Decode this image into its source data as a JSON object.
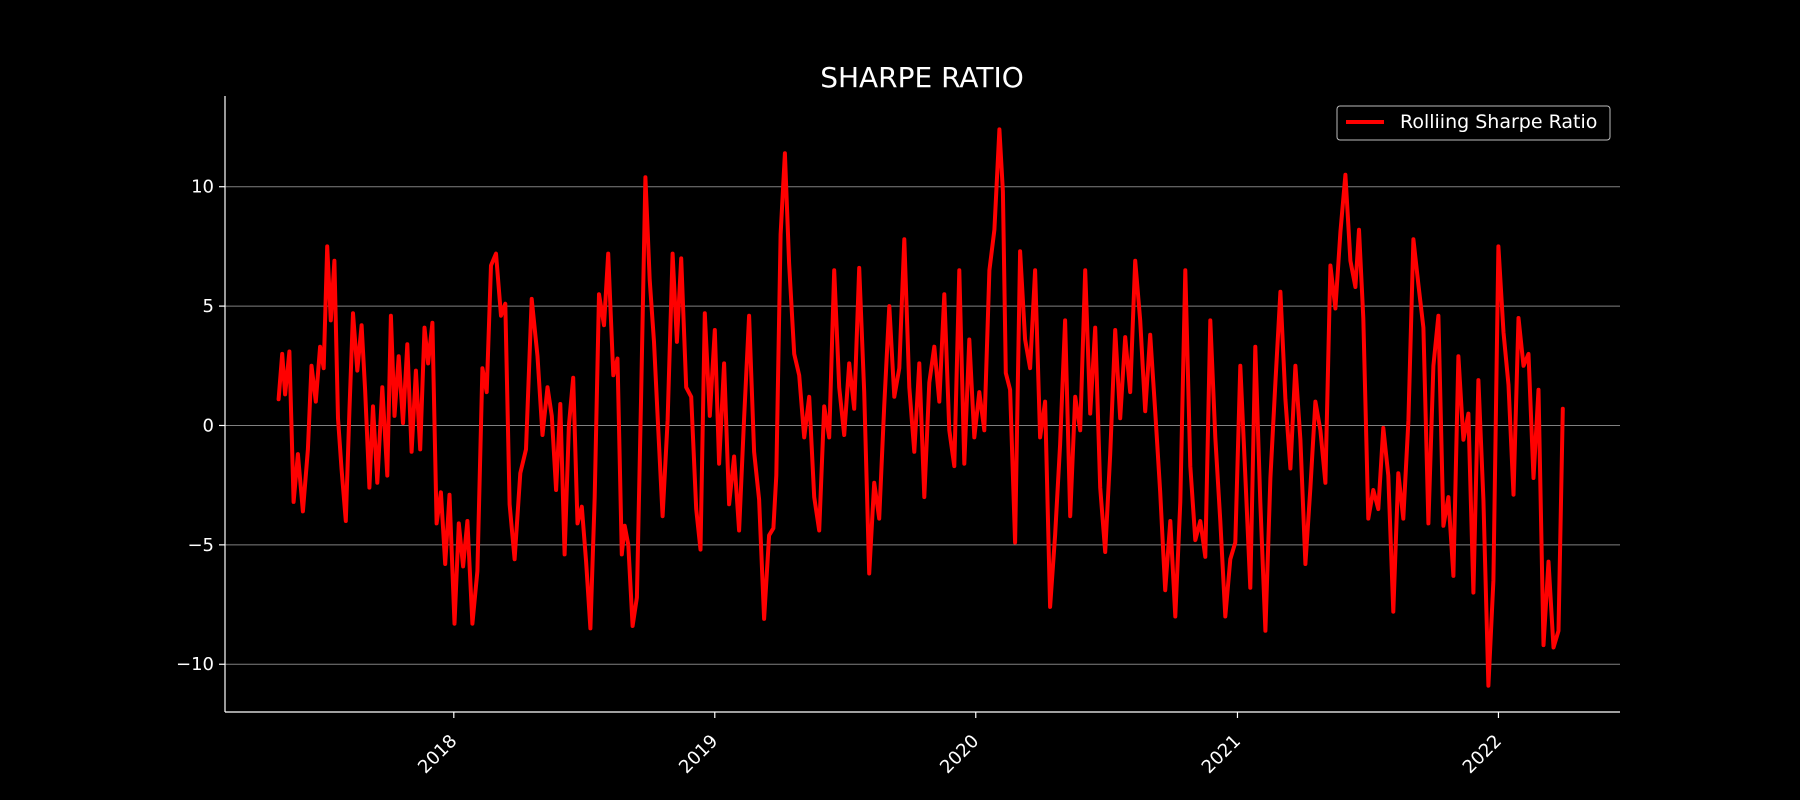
{
  "chart_data": {
    "type": "line",
    "title": "SHARPE RATIO",
    "xlabel": "",
    "ylabel": "",
    "x_axis_type": "date",
    "x_ticks": [
      "2018",
      "2019",
      "2020",
      "2021",
      "2022"
    ],
    "y_ticks": [
      -10,
      -5,
      0,
      5,
      10
    ],
    "xlim": [
      "2017-02-15",
      "2022-06-20"
    ],
    "ylim": [
      -12,
      13.8
    ],
    "grid": "horizontal",
    "legend_position": "top-right",
    "colors": {
      "background": "#000000",
      "series": "#ff0000",
      "grid": "#808080",
      "text": "#ffffff"
    },
    "series": [
      {
        "name": "Rolliing Sharpe Ratio",
        "x": [
          "2017-05-01",
          "2017-05-06",
          "2017-05-10",
          "2017-05-16",
          "2017-05-22",
          "2017-05-28",
          "2017-06-04",
          "2017-06-11",
          "2017-06-16",
          "2017-06-22",
          "2017-06-28",
          "2017-07-03",
          "2017-07-08",
          "2017-07-13",
          "2017-07-18",
          "2017-07-23",
          "2017-07-28",
          "2017-08-03",
          "2017-08-08",
          "2017-08-13",
          "2017-08-19",
          "2017-08-25",
          "2017-08-30",
          "2017-09-05",
          "2017-09-10",
          "2017-09-16",
          "2017-09-23",
          "2017-09-30",
          "2017-10-05",
          "2017-10-10",
          "2017-10-16",
          "2017-10-22",
          "2017-10-28",
          "2017-11-03",
          "2017-11-09",
          "2017-11-15",
          "2017-11-21",
          "2017-11-26",
          "2017-12-02",
          "2017-12-08",
          "2017-12-14",
          "2017-12-20",
          "2017-12-26",
          "2018-01-02",
          "2018-01-08",
          "2018-01-14",
          "2018-01-20",
          "2018-01-27",
          "2018-02-03",
          "2018-02-10",
          "2018-02-16",
          "2018-02-22",
          "2018-03-01",
          "2018-03-08",
          "2018-03-14",
          "2018-03-20",
          "2018-03-27",
          "2018-04-04",
          "2018-04-12",
          "2018-04-20",
          "2018-04-28",
          "2018-05-05",
          "2018-05-12",
          "2018-05-18",
          "2018-05-24",
          "2018-05-30",
          "2018-06-05",
          "2018-06-11",
          "2018-06-17",
          "2018-06-23",
          "2018-06-29",
          "2018-07-05",
          "2018-07-11",
          "2018-07-17",
          "2018-07-23",
          "2018-07-30",
          "2018-08-05",
          "2018-08-12",
          "2018-08-18",
          "2018-08-24",
          "2018-08-28",
          "2018-09-02",
          "2018-09-08",
          "2018-09-14",
          "2018-09-20",
          "2018-09-26",
          "2018-10-02",
          "2018-10-08",
          "2018-10-14",
          "2018-10-20",
          "2018-10-27",
          "2018-11-03",
          "2018-11-09",
          "2018-11-15",
          "2018-11-22",
          "2018-11-29",
          "2018-12-06",
          "2018-12-12",
          "2018-12-18",
          "2018-12-25",
          "2019-01-01",
          "2019-01-07",
          "2019-01-14",
          "2019-01-21",
          "2019-01-28",
          "2019-02-04",
          "2019-02-11",
          "2019-02-18",
          "2019-02-25",
          "2019-03-04",
          "2019-03-11",
          "2019-03-18",
          "2019-03-24",
          "2019-03-28",
          "2019-04-03",
          "2019-04-09",
          "2019-04-15",
          "2019-04-22",
          "2019-04-29",
          "2019-05-06",
          "2019-05-13",
          "2019-05-20",
          "2019-05-27",
          "2019-06-03",
          "2019-06-10",
          "2019-06-17",
          "2019-06-24",
          "2019-07-01",
          "2019-07-08",
          "2019-07-15",
          "2019-07-22",
          "2019-07-29",
          "2019-08-05",
          "2019-08-12",
          "2019-08-19",
          "2019-08-26",
          "2019-09-02",
          "2019-09-09",
          "2019-09-16",
          "2019-09-23",
          "2019-09-30",
          "2019-10-07",
          "2019-10-14",
          "2019-10-21",
          "2019-10-28",
          "2019-11-04",
          "2019-11-11",
          "2019-11-18",
          "2019-11-25",
          "2019-12-02",
          "2019-12-09",
          "2019-12-16",
          "2019-12-23",
          "2019-12-30",
          "2020-01-06",
          "2020-01-13",
          "2020-01-20",
          "2020-01-27",
          "2020-02-03",
          "2020-02-08",
          "2020-02-12",
          "2020-02-18",
          "2020-02-25",
          "2020-03-03",
          "2020-03-10",
          "2020-03-17",
          "2020-03-24",
          "2020-03-31",
          "2020-04-07",
          "2020-04-14",
          "2020-04-21",
          "2020-04-28",
          "2020-05-05",
          "2020-05-12",
          "2020-05-19",
          "2020-05-26",
          "2020-06-02",
          "2020-06-09",
          "2020-06-16",
          "2020-06-23",
          "2020-06-30",
          "2020-07-07",
          "2020-07-14",
          "2020-07-21",
          "2020-07-28",
          "2020-08-04",
          "2020-08-11",
          "2020-08-18",
          "2020-08-25",
          "2020-09-01",
          "2020-09-08",
          "2020-09-15",
          "2020-09-22",
          "2020-09-29",
          "2020-10-06",
          "2020-10-13",
          "2020-10-20",
          "2020-10-27",
          "2020-11-03",
          "2020-11-10",
          "2020-11-17",
          "2020-11-24",
          "2020-12-01",
          "2020-12-08",
          "2020-12-15",
          "2020-12-22",
          "2020-12-29",
          "2021-01-05",
          "2021-01-12",
          "2021-01-19",
          "2021-01-26",
          "2021-02-02",
          "2021-02-09",
          "2021-02-16",
          "2021-02-23",
          "2021-03-02",
          "2021-03-09",
          "2021-03-16",
          "2021-03-23",
          "2021-03-30",
          "2021-04-06",
          "2021-04-13",
          "2021-04-20",
          "2021-04-27",
          "2021-05-04",
          "2021-05-11",
          "2021-05-18",
          "2021-05-25",
          "2021-06-01",
          "2021-06-08",
          "2021-06-15",
          "2021-06-20",
          "2021-06-26",
          "2021-07-03",
          "2021-07-10",
          "2021-07-17",
          "2021-07-24",
          "2021-07-31",
          "2021-08-07",
          "2021-08-14",
          "2021-08-21",
          "2021-08-28",
          "2021-09-04",
          "2021-09-11",
          "2021-09-18",
          "2021-09-25",
          "2021-10-02",
          "2021-10-09",
          "2021-10-16",
          "2021-10-23",
          "2021-10-30",
          "2021-11-06",
          "2021-11-13",
          "2021-11-20",
          "2021-11-27",
          "2021-12-04",
          "2021-12-11",
          "2021-12-18",
          "2021-12-25",
          "2022-01-01",
          "2022-01-08",
          "2022-01-15",
          "2022-01-22",
          "2022-01-29",
          "2022-02-05",
          "2022-02-12",
          "2022-02-19",
          "2022-02-26",
          "2022-03-05",
          "2022-03-12",
          "2022-03-19",
          "2022-03-26",
          "2022-04-01"
        ],
        "y": [
          1.1,
          3.0,
          1.3,
          3.1,
          -3.2,
          -1.2,
          -3.6,
          -1.0,
          2.5,
          1.0,
          3.3,
          2.4,
          7.5,
          4.4,
          6.9,
          0.3,
          -1.8,
          -4.0,
          0.6,
          4.7,
          2.3,
          4.2,
          1.5,
          -2.6,
          0.8,
          -2.4,
          1.6,
          -2.1,
          4.6,
          0.4,
          2.9,
          0.1,
          3.4,
          -1.1,
          2.3,
          -1.0,
          4.1,
          2.6,
          4.3,
          -4.1,
          -2.8,
          -5.8,
          -2.9,
          -8.3,
          -4.1,
          -5.9,
          -4.0,
          -8.3,
          -6.1,
          2.4,
          1.4,
          6.7,
          7.2,
          4.6,
          5.1,
          -3.3,
          -5.6,
          -2.0,
          -1.0,
          5.3,
          2.9,
          -0.4,
          1.6,
          0.4,
          -2.7,
          0.9,
          -5.4,
          0.0,
          2.0,
          -4.1,
          -3.4,
          -5.7,
          -8.5,
          -3.0,
          5.5,
          4.2,
          7.2,
          2.1,
          2.8,
          -5.4,
          -4.2,
          -5.0,
          -8.4,
          -7.2,
          1.2,
          10.4,
          6.1,
          3.5,
          -0.2,
          -3.8,
          0.2,
          7.2,
          3.5,
          7.0,
          1.6,
          1.2,
          -3.5,
          -5.2,
          4.7,
          0.4,
          4.0,
          -1.6,
          2.6,
          -3.3,
          -1.3,
          -4.4,
          0.3,
          4.6,
          -1.1,
          -3.1,
          -8.1,
          -4.6,
          -4.3,
          -2.1,
          8.0,
          11.4,
          6.8,
          3.0,
          2.1,
          -0.5,
          1.2,
          -3.0,
          -4.4,
          0.8,
          -0.5,
          6.5,
          1.6,
          -0.4,
          2.6,
          0.7,
          6.6,
          1.4,
          -6.2,
          -2.4,
          -3.9,
          0.8,
          5.0,
          1.2,
          2.4,
          7.8,
          1.6,
          -1.1,
          2.6,
          -3.0,
          1.8,
          3.3,
          1.0,
          5.5,
          -0.2,
          -1.7,
          6.5,
          -1.6,
          3.6,
          -0.5,
          1.4,
          -0.2,
          6.5,
          8.2,
          12.4,
          9.8,
          2.2,
          1.5,
          -4.9,
          7.3,
          3.6,
          2.4,
          6.5,
          -0.5,
          1.0,
          -7.6,
          -4.6,
          -0.8,
          4.4,
          -3.8,
          1.2,
          -0.2,
          6.5,
          0.5,
          4.1,
          -2.6,
          -5.3,
          -1.2,
          4.0,
          0.3,
          3.7,
          1.4,
          6.9,
          4.4,
          0.6,
          3.8,
          0.6,
          -2.8,
          -6.9,
          -4.0,
          -8.0,
          -3.2,
          6.5,
          -1.7,
          -4.8,
          -4.0,
          -5.5,
          4.4,
          -0.5,
          -4.0,
          -8.0,
          -5.6,
          -4.9,
          2.5,
          -2.1,
          -6.8,
          3.3,
          -3.2,
          -8.6,
          -2.2,
          1.8,
          5.6,
          1.1,
          -1.8,
          2.5,
          -0.6,
          -5.8,
          -2.6,
          1.0,
          -0.2,
          -2.4,
          6.7,
          4.9,
          8.1,
          10.5,
          6.9,
          5.8,
          8.2,
          4.5,
          -3.9,
          -2.7,
          -3.5,
          -0.1,
          -2.1,
          -7.8,
          -2.0,
          -3.9,
          0.2,
          7.8,
          5.9,
          4.1,
          -4.1,
          2.5,
          4.6,
          -4.2,
          -3.0,
          -6.3,
          2.9,
          -0.6,
          0.5,
          -7.0,
          1.9,
          -3.1,
          -10.9,
          -6.5,
          7.5,
          3.9,
          1.7,
          -2.9,
          4.5,
          2.5,
          3.0,
          -2.2,
          1.5,
          -9.2,
          -5.7,
          -9.3,
          -8.6,
          0.7
        ]
      }
    ]
  }
}
